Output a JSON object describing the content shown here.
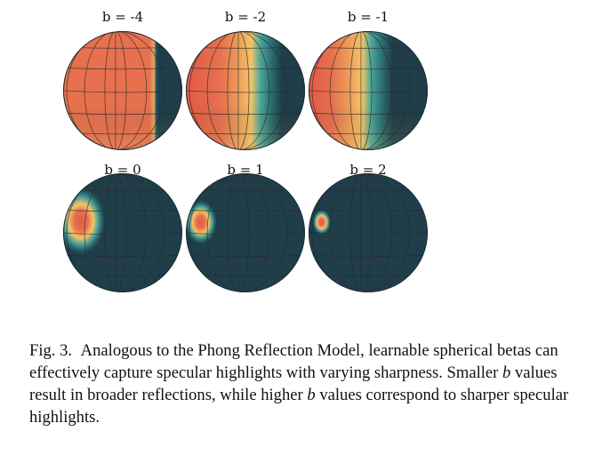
{
  "figure": {
    "colors": {
      "base": "#1f3e4a",
      "grid": "#2a2a2a",
      "ramp": [
        "#1f3e4a",
        "#2c6f72",
        "#4aa79a",
        "#f2c469",
        "#eea45c",
        "#e7714f",
        "#e25a45"
      ]
    },
    "panels": [
      {
        "label": "b = -4",
        "b": -4
      },
      {
        "label": "b = -2",
        "b": -2
      },
      {
        "label": "b = -1",
        "b": -1
      },
      {
        "label": "b = 0",
        "b": 0
      },
      {
        "label": "b = 1",
        "b": 1
      },
      {
        "label": "b = 2",
        "b": 2
      }
    ]
  },
  "caption": {
    "number": "Fig. 3.",
    "part1": "Analogous to the Phong Reflection Model, learnable spherical betas can effectively capture specular highlights with varying sharpness. Smaller",
    "var1": "b",
    "part2": "values result in broader reflections, while higher",
    "var2": "b",
    "part3": "values correspond to sharper specular highlights."
  }
}
